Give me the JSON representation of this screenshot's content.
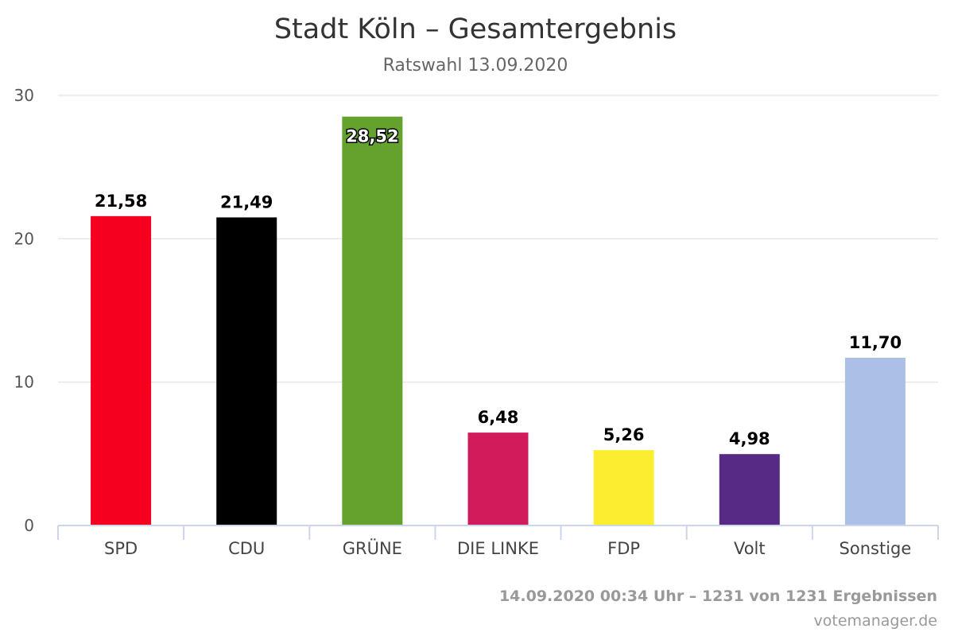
{
  "chart_data": {
    "type": "bar",
    "title": "Stadt Köln – Gesamtergebnis",
    "subtitle": "Ratswahl 13.09.2020",
    "categories": [
      "SPD",
      "CDU",
      "GRÜNE",
      "DIE LINKE",
      "FDP",
      "Volt",
      "Sonstige"
    ],
    "values": [
      21.58,
      21.49,
      28.52,
      6.48,
      5.26,
      4.98,
      11.7
    ],
    "data_labels": [
      "21,58",
      "21,49",
      "28,52",
      "6,48",
      "5,26",
      "4,98",
      "11,70"
    ],
    "colors": [
      "#f5001f",
      "#000000",
      "#64a12d",
      "#d21b5b",
      "#fbee31",
      "#572b85",
      "#acbfe6"
    ],
    "ylim": [
      0,
      30
    ],
    "yticks": [
      0,
      10,
      20,
      30
    ],
    "grid": true,
    "legend": "none",
    "xlabel": "",
    "ylabel": ""
  },
  "footer": {
    "status": "14.09.2020 00:34 Uhr – 1231 von 1231 Ergebnissen",
    "credit": "votemanager.de"
  }
}
